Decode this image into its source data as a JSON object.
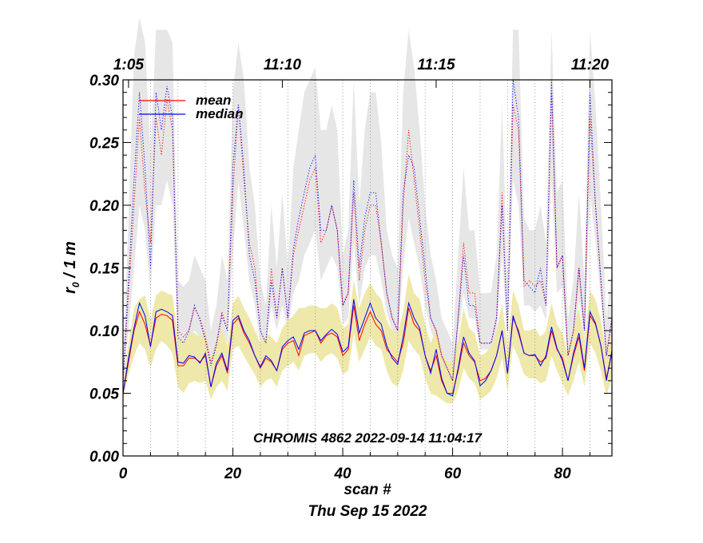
{
  "chart_data": {
    "type": "line",
    "x": [
      0,
      1,
      2,
      3,
      4,
      5,
      6,
      7,
      8,
      9,
      10,
      11,
      12,
      13,
      14,
      15,
      16,
      17,
      18,
      19,
      20,
      21,
      22,
      23,
      24,
      25,
      26,
      27,
      28,
      29,
      30,
      31,
      32,
      33,
      34,
      35,
      36,
      37,
      38,
      39,
      40,
      41,
      42,
      43,
      44,
      45,
      46,
      47,
      48,
      49,
      50,
      51,
      52,
      53,
      54,
      55,
      56,
      57,
      58,
      59,
      60,
      61,
      62,
      63,
      64,
      65,
      66,
      67,
      68,
      69,
      70,
      71,
      72,
      73,
      74,
      75,
      76,
      77,
      78,
      79,
      80,
      81,
      82,
      83,
      84,
      85,
      86,
      87,
      88,
      89
    ],
    "xlabel": "scan #",
    "subtitle": "Thu Sep 15 2022",
    "ylabel_r": "r",
    "ylabel_sub": "0",
    "ylabel_unit": " / 1 m",
    "xlim": [
      0,
      89
    ],
    "ylim": [
      0.0,
      0.3
    ],
    "xticks": [
      "0",
      "20",
      "40",
      "60",
      "80"
    ],
    "xtick_values": [
      0,
      20,
      40,
      60,
      80
    ],
    "yticks": [
      "0.00",
      "0.05",
      "0.10",
      "0.15",
      "0.20",
      "0.25",
      "0.30"
    ],
    "ytick_values": [
      0.0,
      0.05,
      0.1,
      0.15,
      0.2,
      0.25,
      0.3
    ],
    "top_axis_labels": [
      "1:05",
      "11:10",
      "11:15",
      "11:20"
    ],
    "top_axis_scan_positions": [
      1,
      29,
      57,
      85
    ],
    "vertical_dotted_lines_at_scan": [
      5,
      10,
      15,
      20,
      25,
      30,
      35,
      40,
      45,
      50,
      55,
      60,
      65,
      70,
      75,
      80,
      85
    ],
    "annotation": "CHROMIS 4862 2022-09-14 11:04:17",
    "series": [
      {
        "name": "mean",
        "color": "#ff0000",
        "style": "solid",
        "values": [
          0.05,
          0.075,
          0.1,
          0.115,
          0.105,
          0.088,
          0.11,
          0.113,
          0.112,
          0.108,
          0.072,
          0.072,
          0.078,
          0.078,
          0.075,
          0.08,
          0.055,
          0.072,
          0.08,
          0.066,
          0.105,
          0.11,
          0.098,
          0.09,
          0.08,
          0.07,
          0.078,
          0.075,
          0.068,
          0.085,
          0.09,
          0.092,
          0.08,
          0.096,
          0.098,
          0.1,
          0.09,
          0.096,
          0.098,
          0.095,
          0.08,
          0.085,
          0.12,
          0.092,
          0.105,
          0.115,
          0.105,
          0.1,
          0.085,
          0.08,
          0.075,
          0.09,
          0.118,
          0.105,
          0.1,
          0.08,
          0.068,
          0.08,
          0.06,
          0.05,
          0.05,
          0.068,
          0.09,
          0.08,
          0.075,
          0.06,
          0.062,
          0.068,
          0.08,
          0.1,
          0.066,
          0.11,
          0.1,
          0.082,
          0.08,
          0.08,
          0.075,
          0.078,
          0.1,
          0.085,
          0.078,
          0.06,
          0.08,
          0.095,
          0.068,
          0.112,
          0.105,
          0.088,
          0.062,
          0.082
        ]
      },
      {
        "name": "median",
        "color": "#0000ff",
        "style": "solid",
        "values": [
          0.05,
          0.078,
          0.102,
          0.122,
          0.112,
          0.087,
          0.115,
          0.117,
          0.115,
          0.112,
          0.075,
          0.074,
          0.08,
          0.079,
          0.074,
          0.082,
          0.055,
          0.074,
          0.082,
          0.068,
          0.108,
          0.112,
          0.1,
          0.092,
          0.08,
          0.071,
          0.08,
          0.076,
          0.068,
          0.087,
          0.092,
          0.095,
          0.085,
          0.098,
          0.1,
          0.1,
          0.092,
          0.097,
          0.101,
          0.097,
          0.083,
          0.087,
          0.125,
          0.098,
          0.11,
          0.122,
          0.11,
          0.105,
          0.088,
          0.078,
          0.073,
          0.095,
          0.122,
          0.11,
          0.102,
          0.08,
          0.066,
          0.085,
          0.062,
          0.05,
          0.048,
          0.07,
          0.095,
          0.082,
          0.076,
          0.056,
          0.06,
          0.068,
          0.08,
          0.1,
          0.066,
          0.112,
          0.098,
          0.082,
          0.08,
          0.081,
          0.072,
          0.08,
          0.103,
          0.086,
          0.076,
          0.06,
          0.082,
          0.098,
          0.07,
          0.115,
          0.106,
          0.088,
          0.06,
          0.084
        ]
      },
      {
        "name": "mean (dotted)",
        "color": "#ff0000",
        "style": "dotted",
        "values": [
          0.06,
          0.13,
          0.2,
          0.27,
          0.21,
          0.17,
          0.27,
          0.24,
          0.285,
          0.26,
          0.1,
          0.095,
          0.1,
          0.118,
          0.11,
          0.095,
          0.075,
          0.09,
          0.115,
          0.1,
          0.21,
          0.28,
          0.22,
          0.17,
          0.15,
          0.1,
          0.09,
          0.15,
          0.11,
          0.15,
          0.11,
          0.16,
          0.18,
          0.2,
          0.22,
          0.23,
          0.17,
          0.18,
          0.2,
          0.18,
          0.12,
          0.13,
          0.21,
          0.14,
          0.18,
          0.2,
          0.2,
          0.17,
          0.13,
          0.11,
          0.1,
          0.2,
          0.26,
          0.22,
          0.18,
          0.14,
          0.11,
          0.1,
          0.08,
          0.07,
          0.06,
          0.11,
          0.17,
          0.13,
          0.13,
          0.09,
          0.09,
          0.09,
          0.11,
          0.21,
          0.1,
          0.28,
          0.26,
          0.135,
          0.14,
          0.135,
          0.14,
          0.12,
          0.29,
          0.15,
          0.16,
          0.08,
          0.1,
          0.15,
          0.1,
          0.27,
          0.2,
          0.14,
          0.08,
          0.11
        ]
      },
      {
        "name": "median (dotted)",
        "color": "#0000ff",
        "style": "dotted",
        "values": [
          0.06,
          0.14,
          0.22,
          0.29,
          0.23,
          0.15,
          0.29,
          0.26,
          0.295,
          0.27,
          0.095,
          0.09,
          0.1,
          0.12,
          0.108,
          0.092,
          0.072,
          0.088,
          0.112,
          0.1,
          0.23,
          0.28,
          0.23,
          0.16,
          0.14,
          0.1,
          0.09,
          0.14,
          0.11,
          0.15,
          0.11,
          0.165,
          0.19,
          0.21,
          0.23,
          0.24,
          0.18,
          0.18,
          0.2,
          0.18,
          0.12,
          0.13,
          0.22,
          0.15,
          0.19,
          0.21,
          0.21,
          0.17,
          0.13,
          0.11,
          0.1,
          0.21,
          0.24,
          0.23,
          0.19,
          0.15,
          0.11,
          0.1,
          0.08,
          0.07,
          0.06,
          0.11,
          0.16,
          0.12,
          0.12,
          0.09,
          0.09,
          0.09,
          0.11,
          0.2,
          0.1,
          0.3,
          0.27,
          0.14,
          0.135,
          0.13,
          0.15,
          0.12,
          0.3,
          0.15,
          0.16,
          0.08,
          0.1,
          0.15,
          0.1,
          0.29,
          0.2,
          0.14,
          0.08,
          0.11
        ]
      }
    ],
    "bands": [
      {
        "name": "median spread (yellow)",
        "color": "#eee8aa",
        "lower": [
          0.045,
          0.065,
          0.08,
          0.09,
          0.085,
          0.07,
          0.085,
          0.092,
          0.088,
          0.082,
          0.055,
          0.05,
          0.058,
          0.06,
          0.058,
          0.06,
          0.045,
          0.055,
          0.06,
          0.052,
          0.085,
          0.088,
          0.08,
          0.072,
          0.065,
          0.055,
          0.06,
          0.062,
          0.055,
          0.068,
          0.072,
          0.075,
          0.068,
          0.08,
          0.082,
          0.082,
          0.075,
          0.08,
          0.082,
          0.078,
          0.065,
          0.068,
          0.098,
          0.075,
          0.085,
          0.095,
          0.088,
          0.085,
          0.068,
          0.058,
          0.055,
          0.068,
          0.092,
          0.085,
          0.08,
          0.062,
          0.05,
          0.048,
          0.045,
          0.042,
          0.042,
          0.052,
          0.07,
          0.062,
          0.058,
          0.045,
          0.048,
          0.052,
          0.062,
          0.078,
          0.052,
          0.088,
          0.078,
          0.065,
          0.062,
          0.062,
          0.058,
          0.06,
          0.08,
          0.068,
          0.058,
          0.048,
          0.06,
          0.075,
          0.055,
          0.09,
          0.082,
          0.068,
          0.048,
          0.062
        ],
        "upper": [
          0.06,
          0.09,
          0.118,
          0.125,
          0.128,
          0.108,
          0.128,
          0.132,
          0.13,
          0.128,
          0.095,
          0.092,
          0.098,
          0.098,
          0.095,
          0.1,
          0.075,
          0.092,
          0.102,
          0.088,
          0.122,
          0.128,
          0.118,
          0.11,
          0.1,
          0.09,
          0.098,
          0.095,
          0.09,
          0.102,
          0.108,
          0.112,
          0.118,
          0.118,
          0.12,
          0.12,
          0.118,
          0.118,
          0.122,
          0.118,
          0.102,
          0.105,
          0.14,
          0.118,
          0.13,
          0.138,
          0.13,
          0.125,
          0.108,
          0.1,
          0.098,
          0.115,
          0.145,
          0.13,
          0.125,
          0.105,
          0.09,
          0.102,
          0.085,
          0.075,
          0.075,
          0.092,
          0.118,
          0.102,
          0.098,
          0.08,
          0.082,
          0.088,
          0.1,
          0.122,
          0.088,
          0.132,
          0.12,
          0.1,
          0.1,
          0.102,
          0.095,
          0.1,
          0.122,
          0.105,
          0.098,
          0.08,
          0.102,
          0.118,
          0.092,
          0.132,
          0.125,
          0.108,
          0.082,
          0.102
        ]
      },
      {
        "name": "max spread (gray)",
        "color": "#e6e6e6",
        "lower": [
          0.055,
          0.1,
          0.15,
          0.2,
          0.18,
          0.13,
          0.2,
          0.2,
          0.22,
          0.2,
          0.09,
          0.085,
          0.09,
          0.1,
          0.095,
          0.088,
          0.07,
          0.085,
          0.1,
          0.09,
          0.16,
          0.22,
          0.18,
          0.14,
          0.12,
          0.09,
          0.085,
          0.12,
          0.1,
          0.12,
          0.1,
          0.13,
          0.14,
          0.16,
          0.17,
          0.18,
          0.14,
          0.15,
          0.16,
          0.15,
          0.105,
          0.11,
          0.17,
          0.12,
          0.15,
          0.16,
          0.16,
          0.14,
          0.115,
          0.1,
          0.095,
          0.15,
          0.19,
          0.17,
          0.15,
          0.12,
          0.1,
          0.09,
          0.075,
          0.065,
          0.058,
          0.095,
          0.13,
          0.11,
          0.11,
          0.085,
          0.085,
          0.085,
          0.1,
          0.16,
          0.092,
          0.22,
          0.2,
          0.12,
          0.12,
          0.115,
          0.12,
          0.108,
          0.22,
          0.13,
          0.135,
          0.075,
          0.092,
          0.125,
          0.092,
          0.21,
          0.17,
          0.125,
          0.075,
          0.1
        ],
        "upper": [
          0.07,
          0.19,
          0.32,
          0.35,
          0.33,
          0.24,
          0.34,
          0.34,
          0.34,
          0.33,
          0.14,
          0.135,
          0.14,
          0.16,
          0.15,
          0.14,
          0.1,
          0.12,
          0.16,
          0.14,
          0.29,
          0.33,
          0.3,
          0.23,
          0.2,
          0.14,
          0.12,
          0.2,
          0.15,
          0.21,
          0.15,
          0.23,
          0.26,
          0.29,
          0.3,
          0.31,
          0.26,
          0.26,
          0.28,
          0.26,
          0.16,
          0.18,
          0.3,
          0.2,
          0.26,
          0.29,
          0.29,
          0.25,
          0.18,
          0.16,
          0.15,
          0.29,
          0.34,
          0.31,
          0.26,
          0.2,
          0.16,
          0.14,
          0.11,
          0.1,
          0.09,
          0.16,
          0.23,
          0.18,
          0.18,
          0.13,
          0.13,
          0.13,
          0.16,
          0.28,
          0.14,
          0.34,
          0.34,
          0.19,
          0.18,
          0.18,
          0.2,
          0.17,
          0.34,
          0.21,
          0.22,
          0.11,
          0.14,
          0.21,
          0.14,
          0.34,
          0.28,
          0.2,
          0.11,
          0.15
        ]
      }
    ],
    "legend": {
      "placement": "top-left",
      "entries": [
        {
          "label": "mean",
          "color": "#ff0000"
        },
        {
          "label": "median",
          "color": "#0000ff"
        }
      ]
    }
  }
}
